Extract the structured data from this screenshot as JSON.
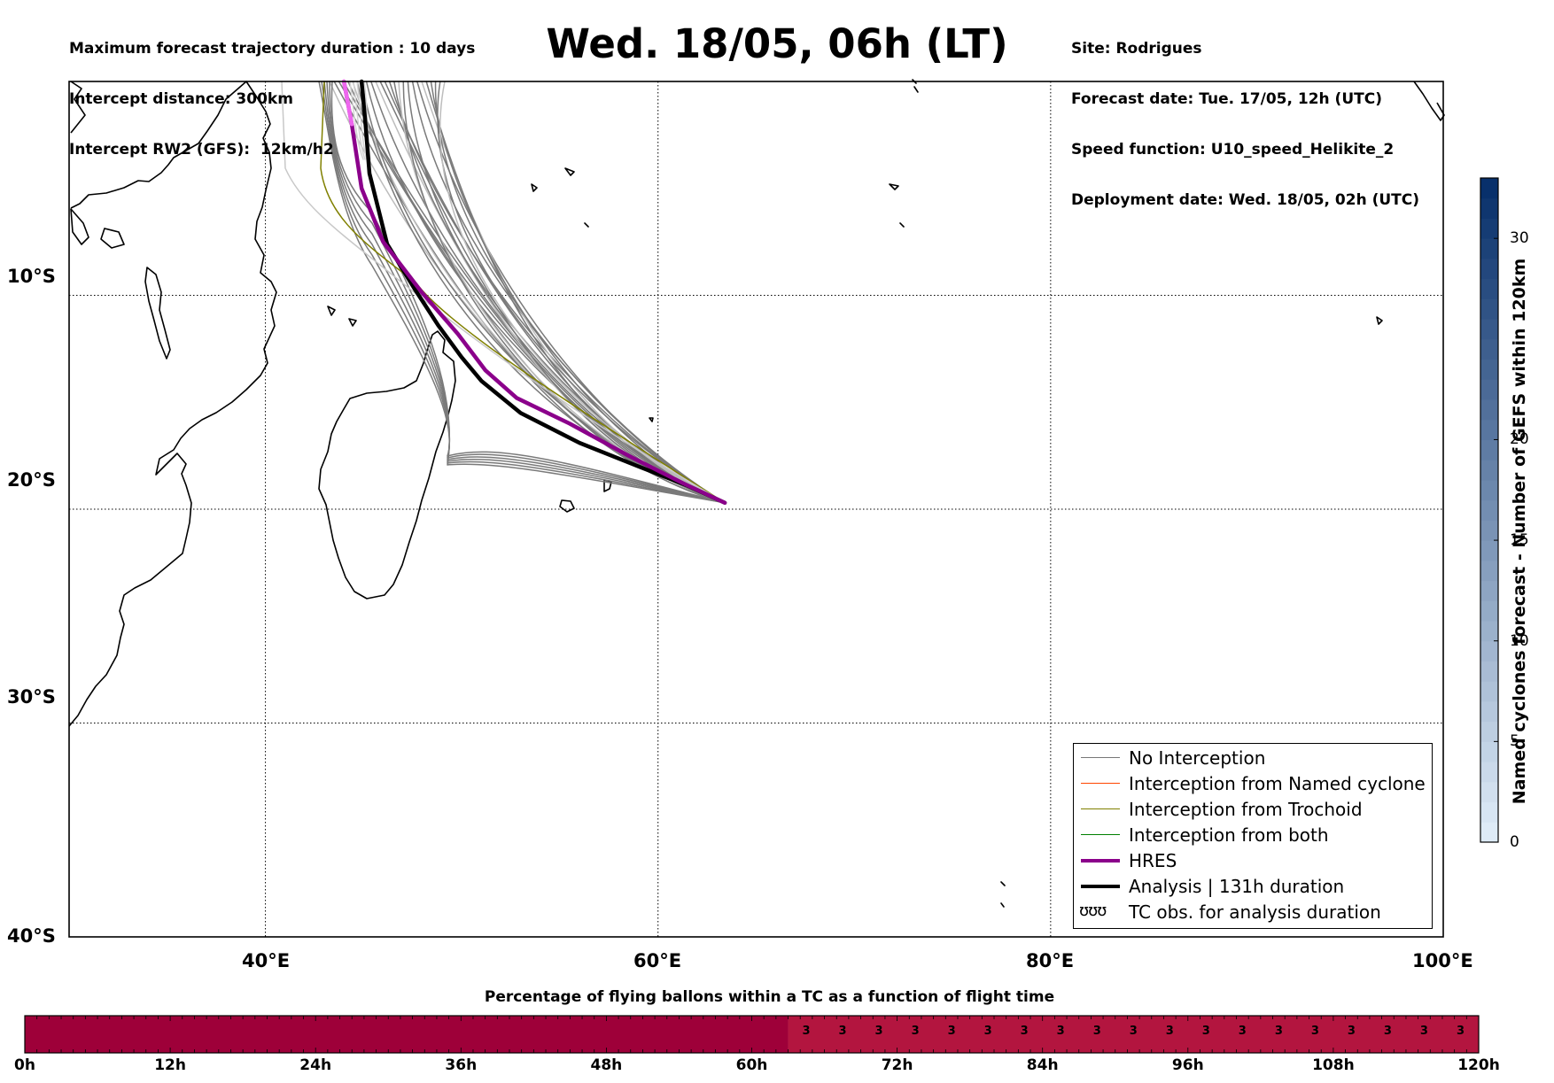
{
  "header": {
    "left_lines": [
      "Maximum forecast trajectory duration : 10 days",
      "Intercept distance: 300km",
      "Intercept RW2 (GFS):  12km/h2"
    ],
    "title": "Wed. 18/05, 06h (LT)",
    "right_lines": [
      "Site: Rodrigues",
      "Forecast date: Tue. 17/05, 12h (UTC)",
      "Speed function: U10_speed_Helikite_2",
      "Deployment date: Wed. 18/05, 02h (UTC)"
    ]
  },
  "map": {
    "lon_range": [
      30,
      100
    ],
    "lat_range": [
      -40,
      0
    ],
    "lat_labels": [
      "10°S",
      "20°S",
      "30°S",
      "40°S"
    ],
    "lon_labels": [
      "40°E",
      "60°E",
      "80°E",
      "100°E"
    ],
    "grid": "dotted",
    "launch_site": {
      "lon": 63.4,
      "lat": -19.7
    }
  },
  "legend": {
    "placement": "lower-right",
    "items": [
      {
        "label": "No Interception",
        "color": "#777777",
        "style": "thin"
      },
      {
        "label": "Interception from Named cyclone",
        "color": "#ff4500",
        "style": "thin"
      },
      {
        "label": "Interception from Trochoid",
        "color": "#808000",
        "style": "thin"
      },
      {
        "label": "Interception from both",
        "color": "#008000",
        "style": "thin"
      },
      {
        "label": "HRES",
        "color": "#8b008b",
        "style": "thick"
      },
      {
        "label": "Analysis | 131h duration",
        "color": "#000000",
        "style": "thick"
      },
      {
        "label": "TC obs. for analysis duration",
        "color": "#000000",
        "style": "symbol",
        "symbol": "ʊʊʊ"
      }
    ]
  },
  "colorbar": {
    "title": "Named cyclones forecast - Number of GEFS within 120km",
    "range": [
      0,
      33
    ],
    "ticks": [
      "0",
      "5",
      "10",
      "15",
      "20",
      "30"
    ],
    "tick_values": [
      0,
      5,
      10,
      15,
      20,
      30
    ],
    "colors": [
      "#deebf7",
      "#08306b"
    ]
  },
  "percentage_bar": {
    "title": "Percentage of flying ballons within a TC as a function of flight time",
    "ticks": [
      "0h",
      "12h",
      "24h",
      "36h",
      "48h",
      "60h",
      "72h",
      "84h",
      "96h",
      "108h",
      "120h"
    ],
    "max_hours": 120,
    "zero_color": "#9e0039",
    "nonzero_color": "#b3153f",
    "nonzero_from_hour": 63,
    "cell_hours": 3,
    "cell_value_label": "3"
  },
  "chart_data": {
    "type": "line",
    "title": "Wed. 18/05, 06h (LT)",
    "xlabel": "",
    "ylabel": "",
    "xlim": [
      30,
      100
    ],
    "ylim": [
      -40,
      0
    ],
    "series": [
      {
        "name": "Analysis | 131h duration",
        "color": "#000000",
        "lon": [
          63.4,
          61.5,
          59.0,
          56.0,
          53.0,
          51.0,
          50.0,
          48.8,
          47.6,
          46.2,
          45.3,
          45.1,
          44.9
        ],
        "lat": [
          -19.7,
          -18.9,
          -18.0,
          -16.9,
          -15.5,
          -14.0,
          -12.9,
          -11.4,
          -9.7,
          -7.6,
          -4.3,
          -2.0,
          0.0
        ]
      },
      {
        "name": "HRES",
        "color": "#8b008b",
        "lon": [
          63.4,
          61.3,
          58.5,
          55.5,
          52.8,
          51.2,
          49.8,
          48.0,
          46.0,
          44.9,
          44.4,
          44.0
        ],
        "lat": [
          -19.7,
          -18.8,
          -17.5,
          -16.0,
          -14.8,
          -13.5,
          -11.8,
          -9.9,
          -7.5,
          -5.0,
          -2.0,
          0.0
        ]
      }
    ]
  }
}
